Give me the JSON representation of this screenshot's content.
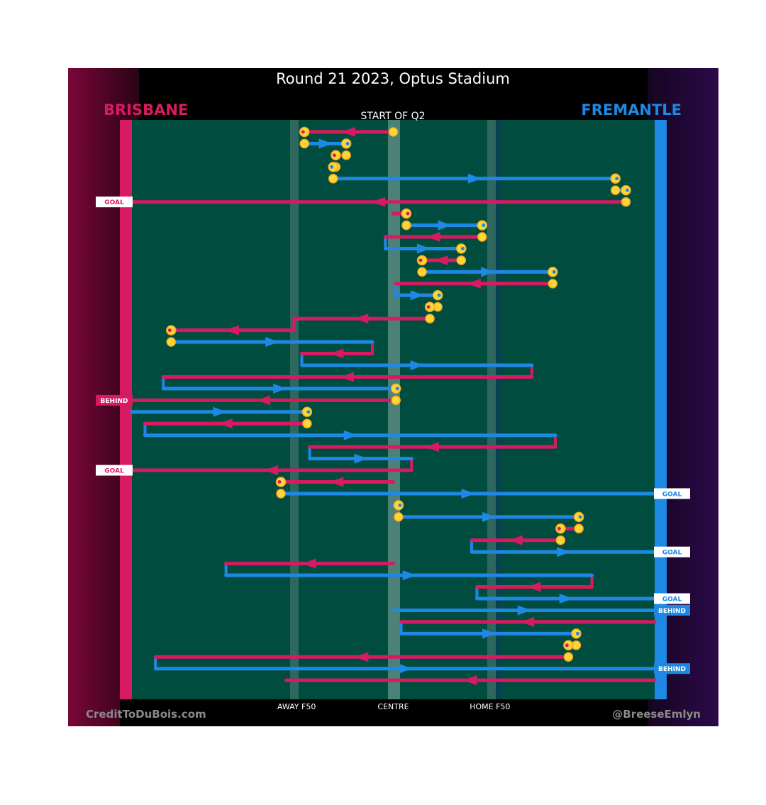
{
  "title": "Round 21 2023, Optus Stadium",
  "left_team": "BRISBANE",
  "right_team": "FREMANTLE",
  "subtitle": "START OF Q2",
  "credit_left": "CreditToDuBois.com",
  "credit_right": "@BreeseEmlyn",
  "colors": {
    "brisbane": "#d81b60",
    "fremantle": "#1e88e5",
    "field": "#004d40",
    "stop_fill": "#fdd835",
    "stop_ring": "#f9a825"
  },
  "chart_data": {
    "type": "possession-chain",
    "x_axis": {
      "range": [
        0,
        100
      ],
      "ticks": [
        {
          "label": "AWAY F50",
          "x": 31.5
        },
        {
          "label": "CENTRE",
          "x": 50
        },
        {
          "label": "HOME F50",
          "x": 68.5
        }
      ]
    },
    "outcome_labels": [
      "GOAL",
      "BEHIND"
    ],
    "chains": [
      {
        "team": "brisbane",
        "start": 50,
        "end": 33,
        "stop": true
      },
      {
        "team": "fremantle",
        "start": 33,
        "end": 41,
        "stop": true
      },
      {
        "team": "brisbane",
        "start": 41,
        "end": 39,
        "stop": true
      },
      {
        "team": "fremantle",
        "start": 39,
        "end": 38.5,
        "stop": true
      },
      {
        "team": "fremantle",
        "start": 38.5,
        "end": 92.5,
        "stop": true
      },
      {
        "team": "fremantle",
        "start": 92.5,
        "end": 94.5,
        "stop": true
      },
      {
        "team": "brisbane",
        "start": 94.5,
        "end": -1,
        "stop": false,
        "outcome": "GOAL"
      },
      {
        "team": "brisbane",
        "start": 50,
        "end": 52.5,
        "stop": true
      },
      {
        "team": "fremantle",
        "start": 52.5,
        "end": 67,
        "stop": true
      },
      {
        "team": "brisbane",
        "start": 67,
        "end": 48.5,
        "stop": false
      },
      {
        "team": "fremantle",
        "start": 48.5,
        "end": 63,
        "stop": true
      },
      {
        "team": "brisbane",
        "start": 63,
        "end": 55.5,
        "stop": true
      },
      {
        "team": "fremantle",
        "start": 55.5,
        "end": 80.5,
        "stop": true
      },
      {
        "team": "brisbane",
        "start": 80.5,
        "end": 50.5,
        "stop": false
      },
      {
        "team": "fremantle",
        "start": 50.5,
        "end": 58.5,
        "stop": true
      },
      {
        "team": "brisbane",
        "start": 58.5,
        "end": 57,
        "stop": true
      },
      {
        "team": "brisbane",
        "start": 57,
        "end": 31,
        "stop": false
      },
      {
        "team": "brisbane",
        "start": 31,
        "end": 7.5,
        "stop": true
      },
      {
        "team": "fremantle",
        "start": 7.5,
        "end": 46,
        "stop": false
      },
      {
        "team": "brisbane",
        "start": 46,
        "end": 32.5,
        "stop": false
      },
      {
        "team": "fremantle",
        "start": 32.5,
        "end": 76.5,
        "stop": false
      },
      {
        "team": "brisbane",
        "start": 76.5,
        "end": 6,
        "stop": false
      },
      {
        "team": "fremantle",
        "start": 6,
        "end": 50.5,
        "stop": true
      },
      {
        "team": "brisbane",
        "start": 50.5,
        "end": -1,
        "stop": false,
        "outcome": "BEHIND"
      },
      {
        "team": "fremantle",
        "start": 0,
        "end": 33.5,
        "stop": true
      },
      {
        "team": "brisbane",
        "start": 33.5,
        "end": 2.5,
        "stop": false
      },
      {
        "team": "fremantle",
        "start": 2.5,
        "end": 81,
        "stop": false
      },
      {
        "team": "brisbane",
        "start": 81,
        "end": 34,
        "stop": false
      },
      {
        "team": "fremantle",
        "start": 34,
        "end": 53.5,
        "stop": false
      },
      {
        "team": "brisbane",
        "start": 53.5,
        "end": -1,
        "stop": false,
        "outcome": "GOAL"
      },
      {
        "team": "brisbane",
        "start": 50,
        "end": 28.5,
        "stop": true
      },
      {
        "team": "fremantle",
        "start": 28.5,
        "end": 101,
        "stop": false,
        "outcome": "GOAL"
      },
      {
        "team": "fremantle",
        "start": 50,
        "end": 51,
        "stop": true
      },
      {
        "team": "fremantle",
        "start": 51,
        "end": 85.5,
        "stop": true
      },
      {
        "team": "brisbane",
        "start": 85.5,
        "end": 82,
        "stop": true
      },
      {
        "team": "brisbane",
        "start": 82,
        "end": 65,
        "stop": false
      },
      {
        "team": "fremantle",
        "start": 65,
        "end": 101,
        "stop": false,
        "outcome": "GOAL"
      },
      {
        "team": "brisbane",
        "start": 50,
        "end": 18,
        "stop": false
      },
      {
        "team": "fremantle",
        "start": 18,
        "end": 88,
        "stop": false
      },
      {
        "team": "brisbane",
        "start": 88,
        "end": 66,
        "stop": false
      },
      {
        "team": "fremantle",
        "start": 66,
        "end": 101,
        "stop": false,
        "outcome": "GOAL"
      },
      {
        "team": "fremantle",
        "start": 50,
        "end": 101,
        "stop": false,
        "outcome": "BEHIND"
      },
      {
        "team": "brisbane",
        "start": 100,
        "end": 51.5,
        "stop": false
      },
      {
        "team": "fremantle",
        "start": 51.5,
        "end": 85,
        "stop": true
      },
      {
        "team": "brisbane",
        "start": 85,
        "end": 83.5,
        "stop": true
      },
      {
        "team": "brisbane",
        "start": 83.5,
        "end": 4.5,
        "stop": false
      },
      {
        "team": "fremantle",
        "start": 4.5,
        "end": 101,
        "stop": false,
        "outcome": "BEHIND"
      },
      {
        "team": "brisbane",
        "start": 100,
        "end": 29.5,
        "stop": false
      }
    ]
  }
}
